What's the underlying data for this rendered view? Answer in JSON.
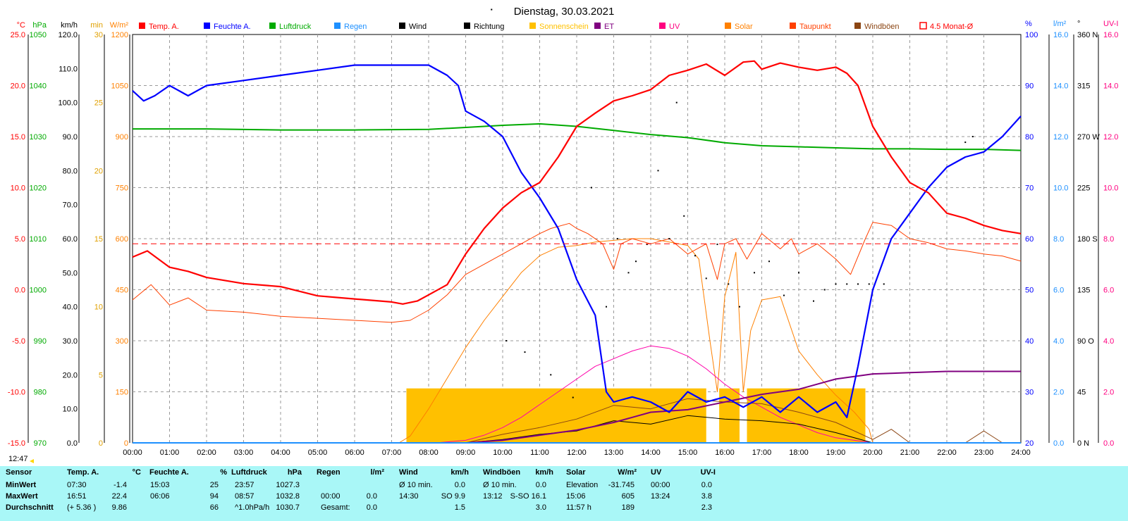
{
  "title": "Dienstag, 30.03.2021",
  "time_label": "12:47",
  "colors": {
    "temp": "#ff0000",
    "humidity": "#0000ff",
    "pressure": "#00aa00",
    "rain": "#1e90ff",
    "wind": "#000000",
    "sunshine": "#ffc000",
    "et": "#800080",
    "uv": "#ff00aa",
    "solar": "#ff8000",
    "dewpoint": "#ff4000",
    "gusts": "#8b4513",
    "avg": "#ff0000"
  },
  "left_axes": [
    {
      "unit": "°C",
      "color": "#ff0000",
      "ticks": [
        "25.0",
        "20.0",
        "15.0",
        "10.0",
        "5.0",
        "0.0",
        "-5.0",
        "-10.0",
        "-15.0"
      ]
    },
    {
      "unit": "hPa",
      "color": "#00aa00",
      "ticks": [
        "1050",
        "1040",
        "1030",
        "1020",
        "1010",
        "1000",
        "990",
        "980",
        "970"
      ]
    },
    {
      "unit": "km/h",
      "color": "#000000",
      "ticks": [
        "120.0",
        "110.0",
        "100.0",
        "90.0",
        "80.0",
        "70.0",
        "60.0",
        "50.0",
        "40.0",
        "30.0",
        "20.0",
        "10.0",
        "0.0"
      ]
    },
    {
      "unit": "min",
      "color": "#e0a000",
      "ticks": [
        "30",
        "25",
        "20",
        "15",
        "10",
        "5",
        "0"
      ]
    },
    {
      "unit": "W/m²",
      "color": "#ff8000",
      "ticks": [
        "1200",
        "1050",
        "900",
        "750",
        "600",
        "450",
        "300",
        "150",
        "0"
      ]
    }
  ],
  "right_axes": [
    {
      "unit": "%",
      "color": "#0000ff",
      "ticks": [
        "100",
        "90",
        "80",
        "70",
        "60",
        "50",
        "40",
        "30",
        "20"
      ]
    },
    {
      "unit": "l/m²",
      "color": "#1e90ff",
      "ticks": [
        "16.0",
        "14.0",
        "12.0",
        "10.0",
        "8.0",
        "6.0",
        "4.0",
        "2.0",
        "0.0"
      ]
    },
    {
      "unit": "°",
      "color": "#000000",
      "ticks": [
        "360 N",
        "315",
        "270 W",
        "225",
        "180 S",
        "135",
        "90 O",
        "45",
        "0 N"
      ]
    },
    {
      "unit": "UV-I",
      "color": "#ff0080",
      "ticks": [
        "16.0",
        "14.0",
        "12.0",
        "10.0",
        "8.0",
        "6.0",
        "4.0",
        "2.0",
        "0.0"
      ]
    }
  ],
  "legend": [
    {
      "label": "Temp. A.",
      "color": "#ff0000"
    },
    {
      "label": "Feuchte A.",
      "color": "#0000ff"
    },
    {
      "label": "Luftdruck",
      "color": "#00aa00"
    },
    {
      "label": "Regen",
      "color": "#1e90ff"
    },
    {
      "label": "Wind",
      "color": "#000000"
    },
    {
      "label": "Richtung",
      "color": "#000000"
    },
    {
      "label": "Sonnenschein",
      "color": "#ffc000"
    },
    {
      "label": "ET",
      "color": "#800080"
    },
    {
      "label": "UV",
      "color": "#ff0080"
    },
    {
      "label": "Solar",
      "color": "#ff8000"
    },
    {
      "label": "Taupunkt",
      "color": "#ff4000"
    },
    {
      "label": "Windböen",
      "color": "#8b4513"
    },
    {
      "label": "4.5 Monat-Ø",
      "color": "#ff0000",
      "outline": true
    }
  ],
  "chart_data": {
    "type": "line",
    "title": "Dienstag, 30.03.2021",
    "x_categories": [
      "00:00",
      "01:00",
      "02:00",
      "03:00",
      "04:00",
      "05:00",
      "06:00",
      "07:00",
      "08:00",
      "09:00",
      "10:00",
      "11:00",
      "12:00",
      "13:00",
      "14:00",
      "15:00",
      "16:00",
      "17:00",
      "18:00",
      "19:00",
      "20:00",
      "21:00",
      "22:00",
      "23:00",
      "24:00"
    ],
    "xlim": [
      0,
      24
    ],
    "grid": true,
    "legend_position": "top",
    "avg_line": {
      "name": "4.5 Monat-Ø",
      "axis": "temp_c",
      "value": 4.5
    },
    "series": [
      {
        "name": "Temp. A.",
        "axis": "temp_c",
        "x": [
          0,
          0.4,
          1,
          1.5,
          2,
          3,
          4,
          5,
          6,
          7,
          7.3,
          7.7,
          8,
          8.5,
          9,
          9.5,
          10,
          10.5,
          11,
          11.5,
          12,
          12.5,
          13,
          13.5,
          14,
          14.5,
          15,
          15.5,
          16,
          16.5,
          16.8,
          17,
          17.5,
          18,
          18.5,
          19,
          19.3,
          19.6,
          20,
          20.5,
          21,
          21.5,
          22,
          22.5,
          23,
          23.5,
          24
        ],
        "y": [
          3.2,
          3.8,
          2.2,
          1.8,
          1.2,
          0.6,
          0.3,
          -0.6,
          -0.9,
          -1.2,
          -1.4,
          -1.1,
          -0.5,
          0.5,
          3.5,
          6.0,
          8.0,
          9.5,
          10.5,
          13.0,
          16.0,
          17.3,
          18.5,
          19.0,
          19.6,
          21.0,
          21.5,
          22.1,
          21.0,
          22.3,
          22.4,
          21.6,
          22.2,
          21.8,
          21.5,
          21.8,
          21.2,
          20.0,
          16.0,
          13.0,
          10.5,
          9.5,
          7.5,
          7.0,
          6.3,
          5.8,
          5.5
        ]
      },
      {
        "name": "Feuchte A.",
        "axis": "humidity_pct",
        "x": [
          0,
          0.3,
          0.6,
          1,
          1.5,
          2,
          3,
          4,
          5,
          6,
          7,
          8,
          8.5,
          8.8,
          9,
          9.5,
          10,
          10.5,
          11,
          11.5,
          12,
          12.5,
          12.8,
          13,
          13.5,
          14,
          14.5,
          15,
          15.5,
          16,
          16.5,
          17,
          17.5,
          18,
          18.5,
          19,
          19.3,
          19.6,
          20,
          20.5,
          21,
          21.5,
          22,
          22.5,
          23,
          23.5,
          24
        ],
        "y": [
          89,
          87,
          88,
          90,
          88,
          90,
          91,
          92,
          93,
          94,
          94,
          94,
          92,
          90,
          85,
          83,
          80,
          73,
          68,
          62,
          52,
          45,
          30,
          28,
          29,
          28,
          26,
          30,
          28,
          29,
          27,
          29,
          26,
          29,
          26,
          28,
          25,
          35,
          50,
          60,
          65,
          70,
          74,
          76,
          77,
          80,
          84
        ]
      },
      {
        "name": "Luftdruck",
        "axis": "pressure_hpa",
        "x": [
          0,
          2,
          4,
          6,
          8,
          9,
          10,
          11,
          12,
          13,
          14,
          15,
          16,
          17,
          18,
          19,
          20,
          21,
          22,
          23,
          24
        ],
        "y": [
          1031.5,
          1031.5,
          1031.3,
          1031.3,
          1031.4,
          1031.8,
          1032.2,
          1032.5,
          1032.0,
          1031.2,
          1030.4,
          1029.8,
          1028.8,
          1028.2,
          1028.0,
          1027.8,
          1027.6,
          1027.6,
          1027.5,
          1027.5,
          1027.3
        ]
      },
      {
        "name": "Taupunkt",
        "axis": "temp_c",
        "x": [
          0,
          0.5,
          1,
          1.5,
          2,
          3,
          4,
          5,
          6,
          7,
          7.5,
          8,
          8.5,
          9,
          9.5,
          10,
          10.5,
          11,
          11.3,
          11.8,
          12,
          12.3,
          12.7,
          13,
          13.2,
          13.5,
          14,
          14.5,
          15,
          15.5,
          15.8,
          16,
          16.3,
          16.6,
          17,
          17.5,
          17.8,
          18,
          18.5,
          19,
          19.4,
          19.8,
          20,
          20.5,
          21,
          21.5,
          22,
          22.5,
          23,
          23.5,
          24
        ],
        "y": [
          -1.0,
          0.5,
          -1.5,
          -0.8,
          -2.0,
          -2.2,
          -2.6,
          -2.8,
          -3.0,
          -3.2,
          -3.0,
          -2.0,
          -0.5,
          1.5,
          2.5,
          3.5,
          4.5,
          5.5,
          6.0,
          6.5,
          6.0,
          5.5,
          4.5,
          2.0,
          4.5,
          5.0,
          4.5,
          5.0,
          3.5,
          4.5,
          1.0,
          4.5,
          5.0,
          3.0,
          5.5,
          4.0,
          5.0,
          3.5,
          4.5,
          3.0,
          1.5,
          5.0,
          6.6,
          6.3,
          5.0,
          4.6,
          4.0,
          3.8,
          3.5,
          3.3,
          2.8
        ]
      },
      {
        "name": "Solar",
        "axis": "solar_wm2",
        "x": [
          0,
          7.2,
          7.5,
          8,
          8.5,
          9,
          9.5,
          10,
          10.5,
          11,
          11.5,
          12,
          12.5,
          13,
          13.5,
          14,
          14.5,
          15,
          15.3,
          15.6,
          15.8,
          16,
          16.3,
          16.5,
          16.7,
          17,
          17.5,
          18,
          18.5,
          19,
          19.5,
          19.9,
          20
        ],
        "y": [
          0,
          0,
          20,
          100,
          190,
          280,
          360,
          430,
          500,
          550,
          575,
          580,
          590,
          595,
          600,
          600,
          590,
          580,
          540,
          300,
          150,
          430,
          560,
          150,
          330,
          420,
          430,
          270,
          200,
          140,
          90,
          40,
          0
        ]
      },
      {
        "name": "UV",
        "axis": "uv_index",
        "x": [
          0,
          8.2,
          9,
          9.5,
          10,
          10.5,
          11,
          11.5,
          12,
          12.5,
          13,
          13.5,
          14,
          14.5,
          15,
          15.5,
          16,
          16.5,
          17,
          17.5,
          18,
          18.5,
          19,
          19.5,
          20
        ],
        "y": [
          0,
          0,
          0.1,
          0.3,
          0.6,
          1.0,
          1.5,
          2.0,
          2.5,
          3.0,
          3.3,
          3.6,
          3.8,
          3.7,
          3.4,
          2.9,
          2.3,
          1.8,
          1.4,
          1.0,
          0.7,
          0.4,
          0.2,
          0.1,
          0
        ]
      },
      {
        "name": "ET",
        "axis": "rain_lm2",
        "x": [
          0,
          8,
          9,
          10,
          11,
          12,
          13,
          13.5,
          14,
          15,
          16,
          17,
          18,
          19,
          20,
          21,
          22,
          23,
          24
        ],
        "y": [
          0,
          0,
          0,
          0.1,
          0.3,
          0.5,
          0.8,
          1.0,
          1.2,
          1.3,
          1.6,
          1.9,
          2.1,
          2.5,
          2.7,
          2.75,
          2.8,
          2.8,
          2.8
        ]
      },
      {
        "name": "Wind",
        "axis": "wind_kmh",
        "x": [
          0,
          9,
          10,
          11,
          12,
          13,
          14,
          15,
          16,
          17,
          18,
          19,
          20
        ],
        "y": [
          0,
          0,
          1.0,
          2.5,
          3.5,
          6.5,
          5.5,
          8.0,
          7.0,
          6.5,
          5.5,
          3.0,
          0
        ]
      },
      {
        "name": "Windböen",
        "axis": "wind_kmh",
        "x": [
          0,
          9,
          10,
          11,
          12,
          13,
          14,
          15,
          16,
          17,
          18,
          19,
          20,
          20.5,
          21,
          22,
          22.5,
          23,
          23.5,
          24
        ],
        "y": [
          0,
          0,
          2.5,
          4.5,
          7.0,
          11.0,
          10.0,
          13.0,
          12.0,
          11.5,
          9.0,
          6.0,
          1.0,
          4.0,
          0,
          0,
          0,
          3.5,
          0,
          0
        ]
      },
      {
        "name": "Sonnenschein",
        "axis": "sunshine_min",
        "type": "bar",
        "segments": [
          {
            "from": 7.4,
            "to": 15.5,
            "value": 4.0
          },
          {
            "from": 15.85,
            "to": 16.4,
            "value": 4.0
          },
          {
            "from": 16.6,
            "to": 19.8,
            "value": 4.0
          }
        ]
      },
      {
        "name": "Richtung",
        "axis": "direction_deg",
        "type": "scatter",
        "x": [
          9.7,
          10.1,
          10.6,
          11.3,
          11.9,
          12.4,
          12.8,
          13.1,
          13.4,
          13.6,
          13.9,
          14.2,
          14.5,
          14.7,
          14.9,
          15.2,
          15.5,
          15.8,
          16.1,
          16.4,
          16.8,
          17.2,
          17.6,
          18.0,
          18.4,
          18.7,
          19.0,
          19.3,
          19.6,
          19.9,
          20.3,
          22.5,
          22.7
        ],
        "y": [
          382,
          90,
          80,
          60,
          40,
          225,
          120,
          180,
          150,
          160,
          175,
          240,
          180,
          300,
          200,
          165,
          145,
          175,
          140,
          120,
          150,
          160,
          130,
          150,
          125,
          135,
          140,
          140,
          140,
          140,
          140,
          265,
          270
        ]
      },
      {
        "name": "Regen",
        "axis": "rain_lm2",
        "x": [
          0,
          24
        ],
        "y": [
          0,
          0
        ]
      }
    ]
  },
  "stats": {
    "header": [
      "Sensor",
      "Temp. A.",
      "°C",
      "Feuchte A.",
      "%",
      "Luftdruck",
      "hPa",
      "Regen",
      "l/m²",
      "Wind",
      "km/h",
      "Windböen",
      "km/h",
      "Solar",
      "W/m²",
      "UV",
      "UV-I"
    ],
    "rows": [
      {
        "label": "MinWert",
        "cells": [
          "07:30",
          "-1.4",
          "15:03",
          "25",
          "23:57",
          "1027.3",
          "",
          "",
          "Ø 10 min.",
          "0.0",
          "Ø 10 min.",
          "0.0",
          "Elevation",
          "-31.745",
          "00:00",
          "0.0"
        ]
      },
      {
        "label": "MaxWert",
        "cells": [
          "16:51",
          "22.4",
          "06:06",
          "94",
          "08:57",
          "1032.8",
          "00:00",
          "0.0",
          "14:30",
          "SO 9.9",
          "13:12",
          "S-SO 16.1",
          "15:06",
          "605",
          "13:24",
          "3.8"
        ]
      },
      {
        "label": "Durchschnitt",
        "cells": [
          "(+ 5.36 )",
          "9.86",
          "",
          "66",
          "^1.0hPa/h",
          "1030.7",
          "Gesamt:",
          "0.0",
          "",
          "1.5",
          "",
          "3.0",
          "11:57 h",
          "189",
          "",
          "2.3"
        ]
      }
    ]
  }
}
